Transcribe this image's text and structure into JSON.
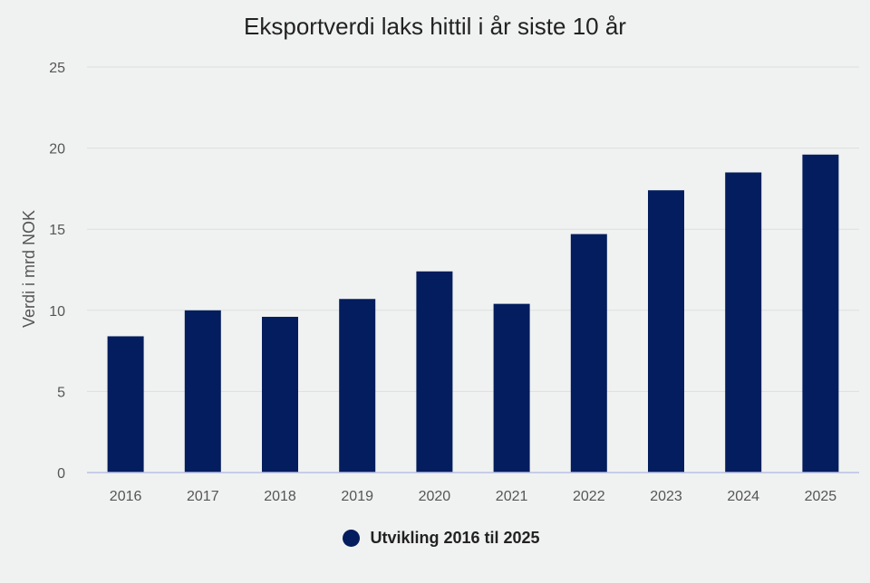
{
  "chart_data": {
    "type": "bar",
    "title": "Eksportverdi laks hittil i år siste 10 år",
    "xlabel": "",
    "ylabel": "Verdi i mrd NOK",
    "categories": [
      "2016",
      "2017",
      "2018",
      "2019",
      "2020",
      "2021",
      "2022",
      "2023",
      "2024",
      "2025"
    ],
    "series": [
      {
        "name": "Utvikling 2016 til 2025",
        "values": [
          8.4,
          10.0,
          9.6,
          10.7,
          12.4,
          10.4,
          14.7,
          17.4,
          18.5,
          19.6
        ],
        "color": "#031d5e"
      }
    ],
    "ylim": [
      0,
      25
    ],
    "yticks": [
      0,
      5,
      10,
      15,
      20,
      25
    ],
    "grid": true,
    "legend_position": "bottom-center"
  },
  "colors": {
    "background": "#f0f2f1",
    "bar": "#031d5e",
    "grid": "#dcdfe0",
    "axis": "#b8c0e6"
  }
}
